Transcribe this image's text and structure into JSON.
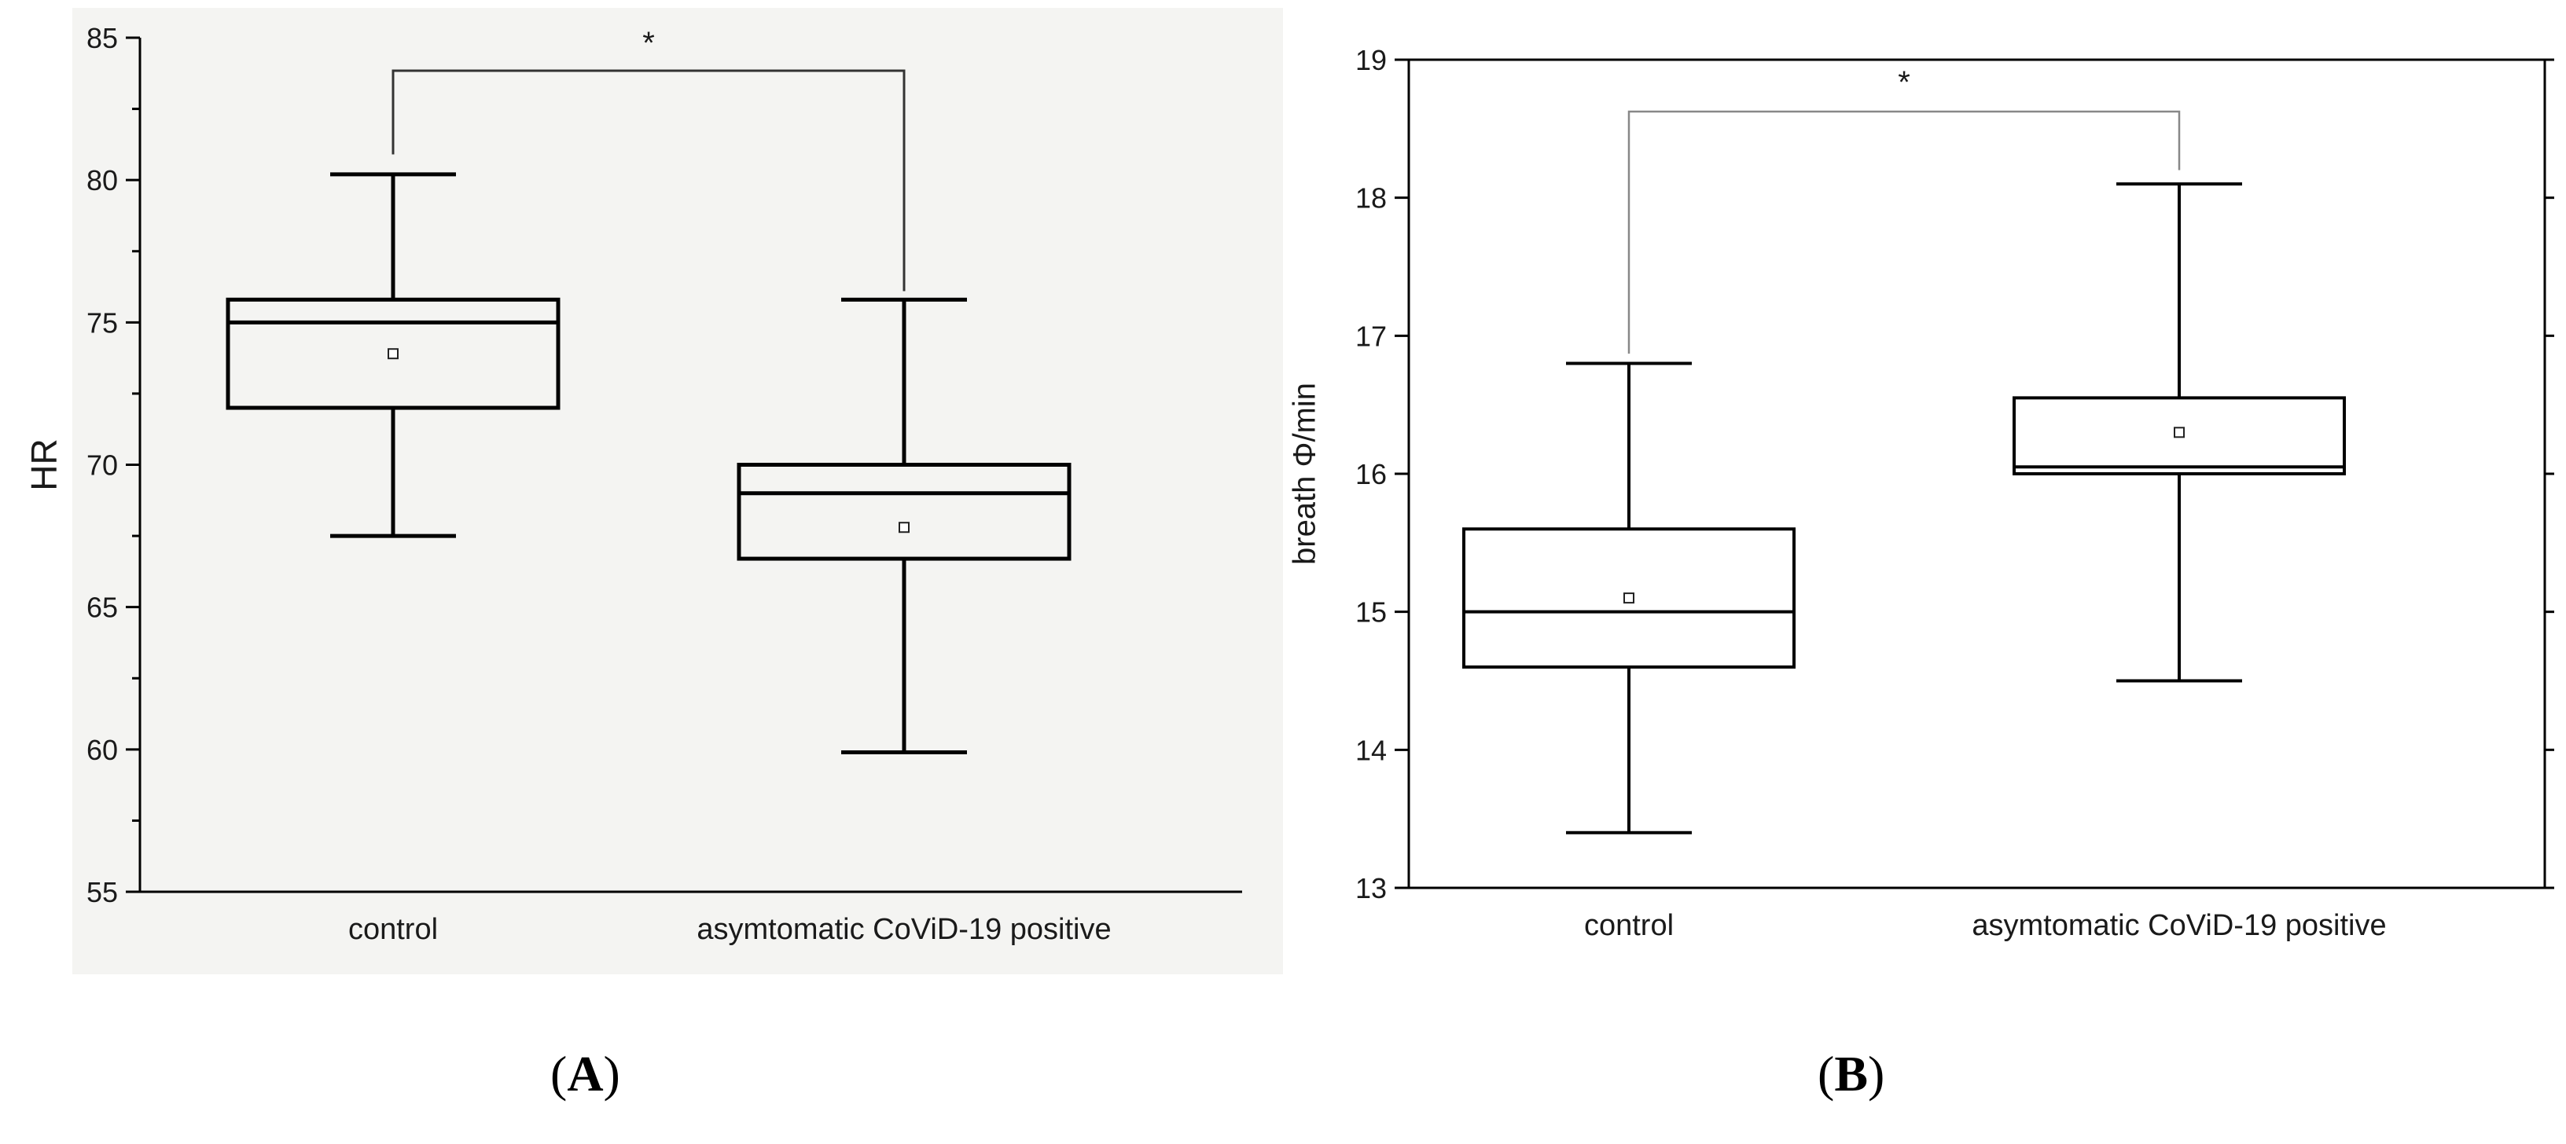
{
  "panels": [
    {
      "label": "A",
      "caption_open": "(",
      "caption_close": ")"
    },
    {
      "label": "B",
      "caption_open": "(",
      "caption_close": ")"
    }
  ],
  "chart_data": [
    {
      "type": "box",
      "panel": "A",
      "ylabel": "HR",
      "ylim": [
        55,
        85
      ],
      "yticks": [
        55,
        60,
        65,
        70,
        75,
        80,
        85
      ],
      "categories": [
        "control",
        "asymtomatic CoViD-19 positive"
      ],
      "boxes": [
        {
          "category": "control",
          "whisker_low": 67.5,
          "q1": 72.0,
          "median": 75.0,
          "q3": 75.8,
          "whisker_high": 80.2,
          "mean": 73.9
        },
        {
          "category": "asymtomatic CoViD-19 positive",
          "whisker_low": 59.9,
          "q1": 66.7,
          "median": 69.0,
          "q3": 70.0,
          "whisker_high": 75.8,
          "mean": 67.8
        }
      ],
      "significance": {
        "between": [
          "control",
          "asymtomatic CoViD-19 positive"
        ],
        "symbol": "*"
      },
      "background": "#f4f4f2"
    },
    {
      "type": "box",
      "panel": "B",
      "ylabel": "breath Φ/min",
      "ylim": [
        13,
        19
      ],
      "yticks": [
        13,
        14,
        15,
        16,
        17,
        18,
        19
      ],
      "categories": [
        "control",
        "asymtomatic CoViD-19 positive"
      ],
      "boxes": [
        {
          "category": "control",
          "whisker_low": 13.4,
          "q1": 14.6,
          "median": 15.0,
          "q3": 15.6,
          "whisker_high": 16.8,
          "mean": 15.1
        },
        {
          "category": "asymtomatic CoViD-19 positive",
          "whisker_low": 14.5,
          "q1": 16.0,
          "median": 16.05,
          "q3": 16.55,
          "whisker_high": 18.1,
          "mean": 16.3
        }
      ],
      "significance": {
        "between": [
          "control",
          "asymtomatic CoViD-19 positive"
        ],
        "symbol": "*"
      },
      "background": "#ffffff"
    }
  ]
}
